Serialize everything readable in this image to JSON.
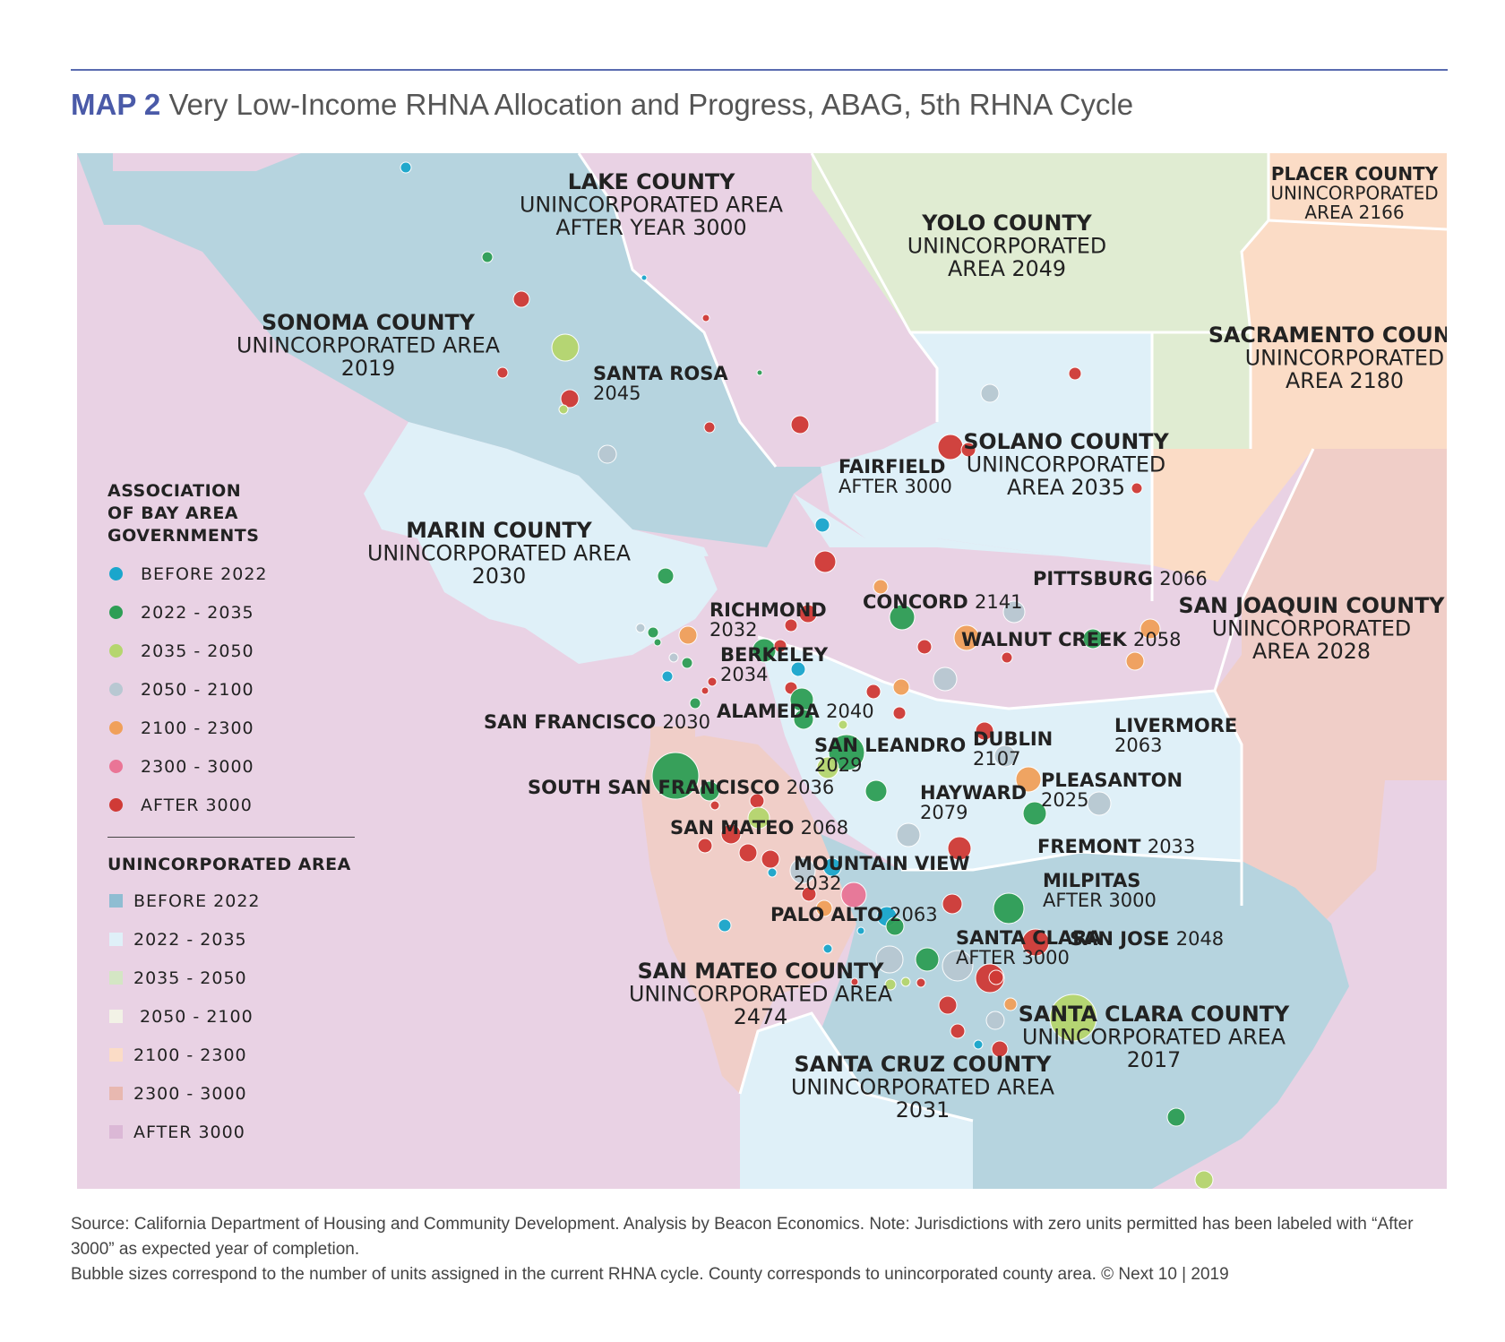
{
  "header": {
    "map_number": "MAP 2",
    "title": "Very Low-Income RHNA Allocation and Progress, ABAG, 5th RHNA Cycle"
  },
  "colors": {
    "city_before_2022": "#1aa6cc",
    "city_2022_2035": "#2e9e55",
    "city_2035_2050": "#b5d66e",
    "city_2050_2100": "#b8c8d2",
    "city_2100_2300": "#f0a05a",
    "city_2300_3000": "#ea7596",
    "city_after_3000": "#d03a36",
    "area_before_2022": "#b6d4df",
    "area_2022_2035": "#dff0f8",
    "area_2035_2050": "#e0ecd2",
    "area_2050_2100": "#f2f2e6",
    "area_2100_2300": "#fbdcc6",
    "area_2300_3000": "#f0cec8",
    "area_after_3000": "#e9d2e4"
  },
  "counties": [
    {
      "lines": [
        "LAKE COUNTY",
        "UNINCORPORATED AREA",
        "AFTER YEAR 3000"
      ]
    },
    {
      "lines": [
        "PLACER COUNTY",
        "UNINCORPORATED",
        "AREA 2166"
      ]
    },
    {
      "lines": [
        "YOLO COUNTY",
        "UNINCORPORATED",
        "AREA 2049"
      ]
    },
    {
      "lines": [
        "SONOMA COUNTY",
        "UNINCORPORATED AREA",
        "2019"
      ]
    },
    {
      "lines": [
        "SACRAMENTO COUNTY",
        "UNINCORPORATED",
        "AREA 2180"
      ]
    },
    {
      "lines": [
        "SOLANO COUNTY",
        "UNINCORPORATED",
        "AREA 2035"
      ]
    },
    {
      "lines": [
        "MARIN COUNTY",
        "UNINCORPORATED AREA",
        "2030"
      ]
    },
    {
      "lines": [
        "SAN JOAQUIN COUNTY",
        "UNINCORPORATED",
        "AREA 2028"
      ]
    },
    {
      "lines": [
        "SAN MATEO COUNTY",
        "UNINCORPORATED AREA",
        "2474"
      ]
    },
    {
      "lines": [
        "SANTA CLARA COUNTY",
        "UNINCORPORATED AREA",
        "2017"
      ]
    },
    {
      "lines": [
        "SANTA CRUZ COUNTY",
        "UNINCORPORATED AREA",
        "2031"
      ]
    }
  ],
  "cities": [
    {
      "name": "SANTA ROSA",
      "year": "2045"
    },
    {
      "name": "FAIRFIELD",
      "year": "AFTER 3000"
    },
    {
      "name": "RICHMOND",
      "year": "2032"
    },
    {
      "name": "BERKELEY",
      "year": "2034"
    },
    {
      "name": "CONCORD",
      "year": "2141"
    },
    {
      "name": "PITTSBURG",
      "year": "2066"
    },
    {
      "name": "WALNUT CREEK",
      "year": "2058"
    },
    {
      "name": "ALAMEDA",
      "year": "2040"
    },
    {
      "name": "SAN FRANCISCO",
      "year": "2030"
    },
    {
      "name": "SAN LEANDRO",
      "year": "2029"
    },
    {
      "name": "DUBLIN",
      "year": "2107"
    },
    {
      "name": "LIVERMORE",
      "year": "2063"
    },
    {
      "name": "PLEASANTON",
      "year": "2025"
    },
    {
      "name": "SOUTH SAN FRANCISCO",
      "year": "2036"
    },
    {
      "name": "HAYWARD",
      "year": "2079"
    },
    {
      "name": "SAN MATEO",
      "year": "2068"
    },
    {
      "name": "FREMONT",
      "year": "2033"
    },
    {
      "name": "MOUNTAIN VIEW",
      "year": "2032"
    },
    {
      "name": "MILPITAS",
      "year": "AFTER 3000"
    },
    {
      "name": "PALO ALTO",
      "year": "2063"
    },
    {
      "name": "SANTA CLARA",
      "year": "AFTER 3000"
    },
    {
      "name": "SAN JOSE",
      "year": "2048"
    }
  ],
  "legend": {
    "abag_title_lines": [
      "ASSOCIATION",
      "OF BAY AREA",
      "GOVERNMENTS"
    ],
    "abag_items": [
      "BEFORE 2022",
      "2022 - 2035",
      "2035 - 2050",
      "2050 - 2100",
      "2100 - 2300",
      "2300 - 3000",
      "AFTER 3000"
    ],
    "unincorporated_title": "UNINCORPORATED AREA",
    "unincorporated_items": [
      "BEFORE 2022",
      "2022 - 2035",
      "2035 - 2050",
      " 2050 - 2100",
      "2100 - 2300",
      "2300 - 3000",
      "AFTER 3000"
    ]
  },
  "source": {
    "line1": "Source: California Department of Housing and Community Development. Analysis by Beacon Economics. Note: Jurisdictions with zero units permitted has been labeled with “After 3000” as expected year of completion.",
    "line2": "Bubble sizes correspond to the number of units assigned in the current RHNA cycle. County corresponds to unincorporated county area.  © Next 10 | 2019"
  }
}
